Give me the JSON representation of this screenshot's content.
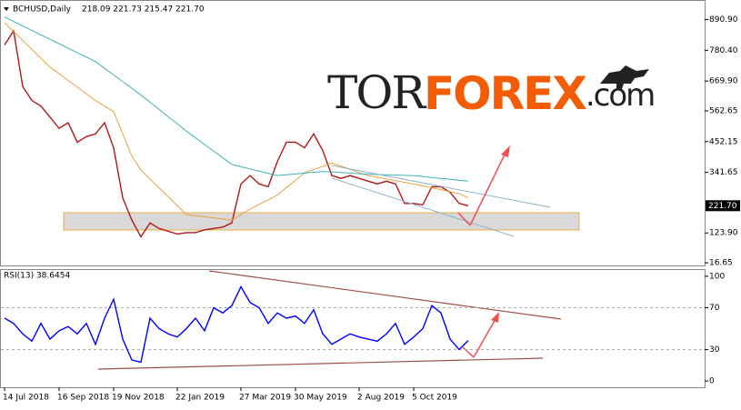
{
  "chart_data": [
    {
      "type": "line",
      "title": "BCHUSD,Daily",
      "quote": "218.09 221.73 215.47 221.70",
      "series": [
        {
          "color": "#b01818",
          "values": [
            800,
            850,
            650,
            600,
            580,
            540,
            500,
            520,
            450,
            470,
            480,
            520,
            430,
            250,
            170,
            110,
            160,
            140,
            130,
            120,
            125,
            125,
            135,
            140,
            145,
            160,
            300,
            330,
            300,
            290,
            380,
            450,
            450,
            430,
            480,
            420,
            330,
            320,
            330,
            320,
            310,
            300,
            310,
            300,
            230,
            230,
            225,
            290,
            290,
            270,
            230,
            221.7
          ]
        },
        {
          "color": "#e8a33d",
          "values": [
            880,
            848,
            816,
            784,
            752,
            720,
            696,
            672,
            648,
            624,
            600,
            580,
            560,
            480,
            400,
            350,
            318,
            286,
            254,
            222,
            190,
            186,
            182,
            178,
            174,
            170,
            190,
            210,
            227,
            243,
            260,
            287,
            313,
            340,
            352,
            363,
            375,
            364,
            353,
            341,
            330,
            324,
            318,
            312,
            306,
            300,
            293,
            286,
            279,
            272,
            265,
            250
          ]
        },
        {
          "color": "#3cb4b4",
          "values": [
            900,
            884,
            868,
            852,
            836,
            820,
            804,
            788,
            772,
            756,
            740,
            716,
            692,
            668,
            644,
            620,
            594,
            568,
            542,
            516,
            490,
            466,
            442,
            418,
            394,
            370,
            362,
            354,
            346,
            338,
            330,
            333,
            336,
            339,
            342,
            345,
            343,
            341,
            339,
            337,
            335,
            334,
            333,
            332,
            331,
            330,
            327,
            323,
            320,
            317,
            313,
            310
          ]
        }
      ],
      "ylim": [
        7,
        958
      ],
      "yticks": [
        {
          "value": 16.65,
          "label": "16.65"
        },
        {
          "value": 123.9,
          "label": "123.90"
        },
        {
          "value": 341.65,
          "label": "341.65"
        },
        {
          "value": 452.15,
          "label": "452.15"
        },
        {
          "value": 562.65,
          "label": "562.65"
        },
        {
          "value": 669.9,
          "label": "669.90"
        },
        {
          "value": 780.4,
          "label": "780.40"
        },
        {
          "value": 890.9,
          "label": "890.90"
        }
      ],
      "current_price": {
        "value": 221.7,
        "label": "221.70"
      },
      "watermark": [
        "TOR",
        "FOREX",
        ".com"
      ],
      "grid": false
    },
    {
      "type": "line",
      "title": "RSI(13) 38.6454",
      "categories": [
        "14 Jul 2018",
        null,
        null,
        null,
        null,
        null,
        "16 Sep 2018",
        null,
        null,
        null,
        null,
        null,
        "19 Nov 2018",
        null,
        null,
        null,
        null,
        null,
        null,
        "22 Jan 2019",
        null,
        null,
        null,
        null,
        null,
        null,
        "27 Mar 2019",
        null,
        null,
        null,
        null,
        null,
        "30 May 2019",
        null,
        null,
        null,
        null,
        null,
        null,
        "2 Aug 2019",
        null,
        null,
        null,
        null,
        null,
        "5 Oct 2019",
        null,
        null,
        null,
        null,
        null,
        null
      ],
      "series": [
        {
          "color": "#0000ff",
          "values": [
            60,
            55,
            45,
            38,
            55,
            40,
            48,
            52,
            45,
            55,
            35,
            60,
            78,
            40,
            20,
            18,
            60,
            50,
            45,
            42,
            50,
            60,
            48,
            70,
            65,
            72,
            90,
            75,
            70,
            55,
            65,
            60,
            62,
            55,
            68,
            45,
            35,
            40,
            45,
            42,
            40,
            38,
            45,
            55,
            35,
            42,
            50,
            72,
            65,
            40,
            30,
            38.6454
          ]
        }
      ],
      "ylim": [
        -6,
        106
      ],
      "yticks": [
        0,
        30,
        70,
        100
      ],
      "levels": [
        30,
        70
      ],
      "grid": false
    }
  ]
}
